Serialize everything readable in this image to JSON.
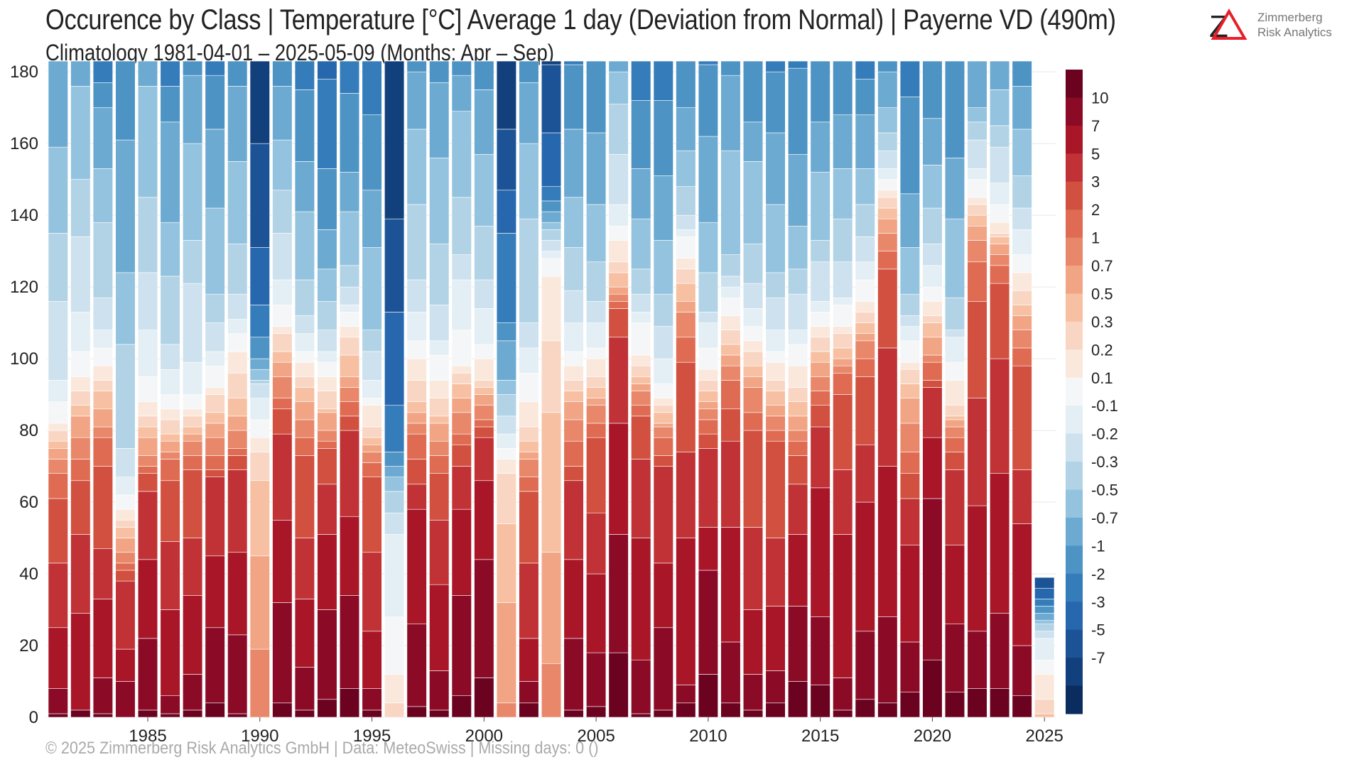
{
  "title": "Occurence by Class | Temperature [°C] Average 1 day (Deviation from Normal) | Payerne  VD (490m)",
  "subtitle": "Climatology 1981-04-01 – 2025-05-09 (Months: Apr – Sep)",
  "footer": "©  2025 Zimmerberg Risk Analytics GmbH | Data: MeteoSwiss | Missing days: 0 ()",
  "logo": {
    "mark": "Z",
    "line1": "Zimmerberg",
    "line2": "Risk Analytics",
    "accent_color": "#e8202a",
    "icon": "zimmerberg-logo-icon"
  },
  "chart_data": {
    "type": "bar",
    "stacked": true,
    "ylim": [
      0,
      183
    ],
    "yticks": [
      0,
      20,
      40,
      60,
      80,
      100,
      120,
      140,
      160,
      180
    ],
    "xticks": [
      "1985",
      "1990",
      "1995",
      "2000",
      "2005",
      "2010",
      "2015",
      "2020",
      "2025"
    ],
    "grid": true,
    "class_labels": [
      "<-7",
      "-7",
      "-5",
      "-3",
      "-2",
      "-1",
      "-0.7",
      "-0.5",
      "-0.3",
      "-0.2",
      "-0.1",
      "0.1",
      "0.2",
      "0.3",
      "0.5",
      "0.7",
      "1",
      "2",
      "3",
      "5",
      "7",
      "10",
      ">10"
    ],
    "colorbar_labels": [
      "10",
      "7",
      "5",
      "3",
      "2",
      "1",
      "0.7",
      "0.5",
      "0.3",
      "0.2",
      "0.1",
      "-0.1",
      "-0.2",
      "-0.3",
      "-0.5",
      "-0.7",
      "-1",
      "-2",
      "-3",
      "-5",
      "-7"
    ],
    "colors": [
      "#6a0220",
      "#8b0a26",
      "#a91628",
      "#c03235",
      "#d1503f",
      "#df6b52",
      "#e8876a",
      "#f1a585",
      "#f7c0a2",
      "#f9d6c3",
      "#fbe8dd",
      "#f5f6f7",
      "#e3eef5",
      "#cde1ee",
      "#b2d3e6",
      "#93c3de",
      "#6daad1",
      "#4d93c4",
      "#357cba",
      "#2767ad",
      "#1b5396",
      "#12407c",
      "#0b2c5e"
    ],
    "years": [
      1981,
      1982,
      1983,
      1984,
      1985,
      1986,
      1987,
      1988,
      1989,
      1990,
      1991,
      1992,
      1993,
      1994,
      1995,
      1996,
      1997,
      1998,
      1999,
      2000,
      2001,
      2002,
      2003,
      2004,
      2005,
      2006,
      2007,
      2008,
      2009,
      2010,
      2011,
      2012,
      2013,
      2014,
      2015,
      2016,
      2017,
      2018,
      2019,
      2020,
      2021,
      2022,
      2023,
      2024,
      2025
    ],
    "cum_boundaries": [
      [
        1,
        8,
        25,
        43,
        61,
        68,
        72,
        75,
        77,
        80,
        82,
        88,
        94,
        116,
        135,
        159,
        183
      ],
      [
        2,
        2,
        29,
        51,
        66,
        72,
        78,
        84,
        87,
        91,
        95,
        102,
        113,
        134,
        150,
        176,
        183
      ],
      [
        1,
        11,
        33,
        47,
        70,
        78,
        81,
        86,
        91,
        94,
        98,
        103,
        108,
        117,
        138,
        153,
        170,
        177,
        183
      ],
      [
        0,
        10,
        19,
        38,
        41,
        43,
        46,
        50,
        53,
        55,
        58,
        62,
        67,
        75,
        104,
        124,
        161,
        183
      ],
      [
        2,
        22,
        44,
        63,
        68,
        70,
        73,
        78,
        81,
        84,
        88,
        95,
        108,
        124,
        145,
        176,
        183
      ],
      [
        1,
        6,
        30,
        49,
        66,
        72,
        74,
        77,
        79,
        83,
        86,
        90,
        97,
        104,
        123,
        138,
        166,
        176,
        183
      ],
      [
        2,
        12,
        34,
        50,
        69,
        73,
        77,
        79,
        81,
        84,
        86,
        90,
        99,
        121,
        133,
        160,
        179,
        183
      ],
      [
        4,
        25,
        45,
        67,
        69,
        73,
        78,
        82,
        85,
        90,
        92,
        98,
        102,
        110,
        118,
        142,
        164,
        179,
        183
      ],
      [
        1,
        23,
        46,
        69,
        73,
        75,
        80,
        84,
        89,
        96,
        102,
        107,
        111,
        118,
        132,
        155,
        176,
        183
      ],
      [
        19,
        45,
        66,
        74,
        78,
        83,
        89,
        93,
        94,
        97,
        100,
        106,
        115,
        131,
        160,
        183
      ],
      [
        4,
        32,
        55,
        79,
        86,
        89,
        95,
        99,
        102,
        107,
        109,
        115,
        122,
        135,
        147,
        161,
        176,
        183
      ],
      [
        2,
        14,
        33,
        50,
        73,
        78,
        83,
        88,
        92,
        95,
        99,
        102,
        107,
        112,
        122,
        141,
        155,
        175,
        183
      ],
      [
        5,
        30,
        51,
        65,
        75,
        77,
        80,
        85,
        86,
        91,
        95,
        99,
        102,
        108,
        116,
        125,
        136,
        153,
        178,
        183
      ],
      [
        8,
        34,
        56,
        80,
        84,
        88,
        92,
        95,
        101,
        106,
        109,
        113,
        115,
        120,
        126,
        141,
        152,
        174,
        183
      ],
      [
        2,
        8,
        24,
        46,
        67,
        71,
        74,
        76,
        78,
        81,
        87,
        89,
        94,
        102,
        108,
        131,
        147,
        168,
        183
      ],
      [
        4,
        12,
        28,
        51,
        57,
        63,
        67,
        70,
        74,
        87,
        113,
        139,
        183
      ],
      [
        3,
        26,
        58,
        65,
        72,
        79,
        82,
        85,
        88,
        94,
        100,
        105,
        113,
        122,
        143,
        164,
        180,
        183
      ],
      [
        2,
        13,
        37,
        55,
        68,
        73,
        77,
        82,
        84,
        89,
        94,
        101,
        105,
        115,
        132,
        156,
        177,
        183
      ],
      [
        6,
        34,
        58,
        70,
        76,
        79,
        85,
        89,
        93,
        96,
        98,
        108,
        122,
        129,
        145,
        169,
        179,
        183
      ],
      [
        11,
        44,
        66,
        78,
        81,
        83,
        87,
        90,
        92,
        94,
        100,
        104,
        114,
        122,
        137,
        157,
        175,
        183
      ],
      [
        4,
        32,
        54,
        68,
        72,
        75,
        79,
        84,
        90,
        94,
        105,
        110,
        135,
        147,
        164,
        184
      ],
      [
        4,
        10,
        22,
        43,
        63,
        67,
        72,
        74,
        77,
        81,
        88,
        96,
        103,
        110,
        139,
        160,
        177,
        183
      ],
      [
        15,
        46,
        85,
        105,
        123,
        128,
        130,
        133,
        136,
        138,
        141,
        144,
        148,
        163,
        182,
        183
      ],
      [
        2,
        22,
        44,
        66,
        70,
        77,
        83,
        88,
        91,
        94,
        98,
        102,
        110,
        119,
        131,
        145,
        164,
        182,
        183
      ],
      [
        3,
        18,
        40,
        57,
        78,
        82,
        87,
        89,
        92,
        95,
        100,
        103,
        110,
        116,
        127,
        143,
        163,
        183
      ],
      [
        18,
        51,
        82,
        106,
        114,
        116,
        118,
        120,
        124,
        127,
        133,
        137,
        143,
        157,
        171,
        180,
        183
      ],
      [
        1,
        16,
        50,
        72,
        84,
        87,
        91,
        93,
        95,
        98,
        101,
        110,
        113,
        118,
        125,
        139,
        153,
        172,
        183
      ],
      [
        2,
        25,
        43,
        70,
        73,
        78,
        81,
        82,
        85,
        87,
        89,
        93,
        100,
        109,
        118,
        133,
        151,
        172,
        183
      ],
      [
        4,
        9,
        50,
        74,
        99,
        106,
        113,
        116,
        121,
        125,
        128,
        134,
        136,
        140,
        148,
        158,
        170,
        183
      ],
      [
        12,
        41,
        53,
        75,
        79,
        83,
        86,
        88,
        91,
        94,
        97,
        103,
        110,
        113,
        124,
        138,
        162,
        182,
        183
      ],
      [
        4,
        21,
        53,
        77,
        86,
        94,
        98,
        101,
        104,
        108,
        112,
        117,
        120,
        123,
        129,
        158,
        179,
        183
      ],
      [
        2,
        12,
        30,
        53,
        80,
        85,
        92,
        95,
        98,
        102,
        105,
        109,
        114,
        121,
        132,
        155,
        166,
        183
      ],
      [
        4,
        13,
        31,
        50,
        77,
        80,
        84,
        87,
        91,
        94,
        99,
        102,
        108,
        117,
        124,
        143,
        163,
        180,
        183
      ],
      [
        10,
        31,
        51,
        65,
        73,
        77,
        80,
        84,
        88,
        92,
        98,
        104,
        108,
        118,
        125,
        137,
        157,
        181,
        183
      ],
      [
        9,
        28,
        64,
        81,
        87,
        91,
        95,
        99,
        102,
        106,
        109,
        113,
        116,
        127,
        133,
        152,
        166,
        183
      ],
      [
        2,
        11,
        51,
        69,
        90,
        96,
        98,
        100,
        103,
        107,
        109,
        115,
        117,
        127,
        139,
        153,
        168,
        183
      ],
      [
        5,
        24,
        60,
        76,
        95,
        100,
        105,
        107,
        110,
        113,
        116,
        122,
        127,
        134,
        143,
        153,
        168,
        178,
        183
      ],
      [
        4,
        28,
        70,
        103,
        125,
        130,
        135,
        139,
        142,
        145,
        147,
        150,
        153,
        158,
        163,
        170,
        180,
        183
      ],
      [
        7,
        21,
        48,
        61,
        68,
        74,
        82,
        89,
        93,
        97,
        99,
        105,
        109,
        112,
        118,
        131,
        146,
        173,
        183
      ],
      [
        16,
        61,
        78,
        92,
        94,
        99,
        101,
        106,
        110,
        112,
        116,
        120,
        126,
        132,
        142,
        154,
        167,
        183
      ],
      [
        7,
        26,
        48,
        69,
        74,
        78,
        81,
        83,
        84,
        87,
        94,
        99,
        106,
        108,
        117,
        139,
        156,
        183
      ],
      [
        8,
        24,
        59,
        89,
        116,
        127,
        133,
        137,
        140,
        143,
        145,
        150,
        153,
        161,
        166,
        170,
        183
      ],
      [
        8,
        29,
        68,
        100,
        121,
        126,
        129,
        132,
        134,
        135,
        138,
        143,
        149,
        159,
        165,
        175,
        184
      ],
      [
        6,
        20,
        54,
        69,
        98,
        103,
        108,
        112,
        115,
        119,
        124,
        129,
        136,
        142,
        151,
        164,
        176,
        183
      ],
      [
        1,
        5,
        12,
        16,
        22,
        24,
        26,
        27,
        29,
        31,
        33,
        36,
        39,
        38
      ]
    ]
  }
}
